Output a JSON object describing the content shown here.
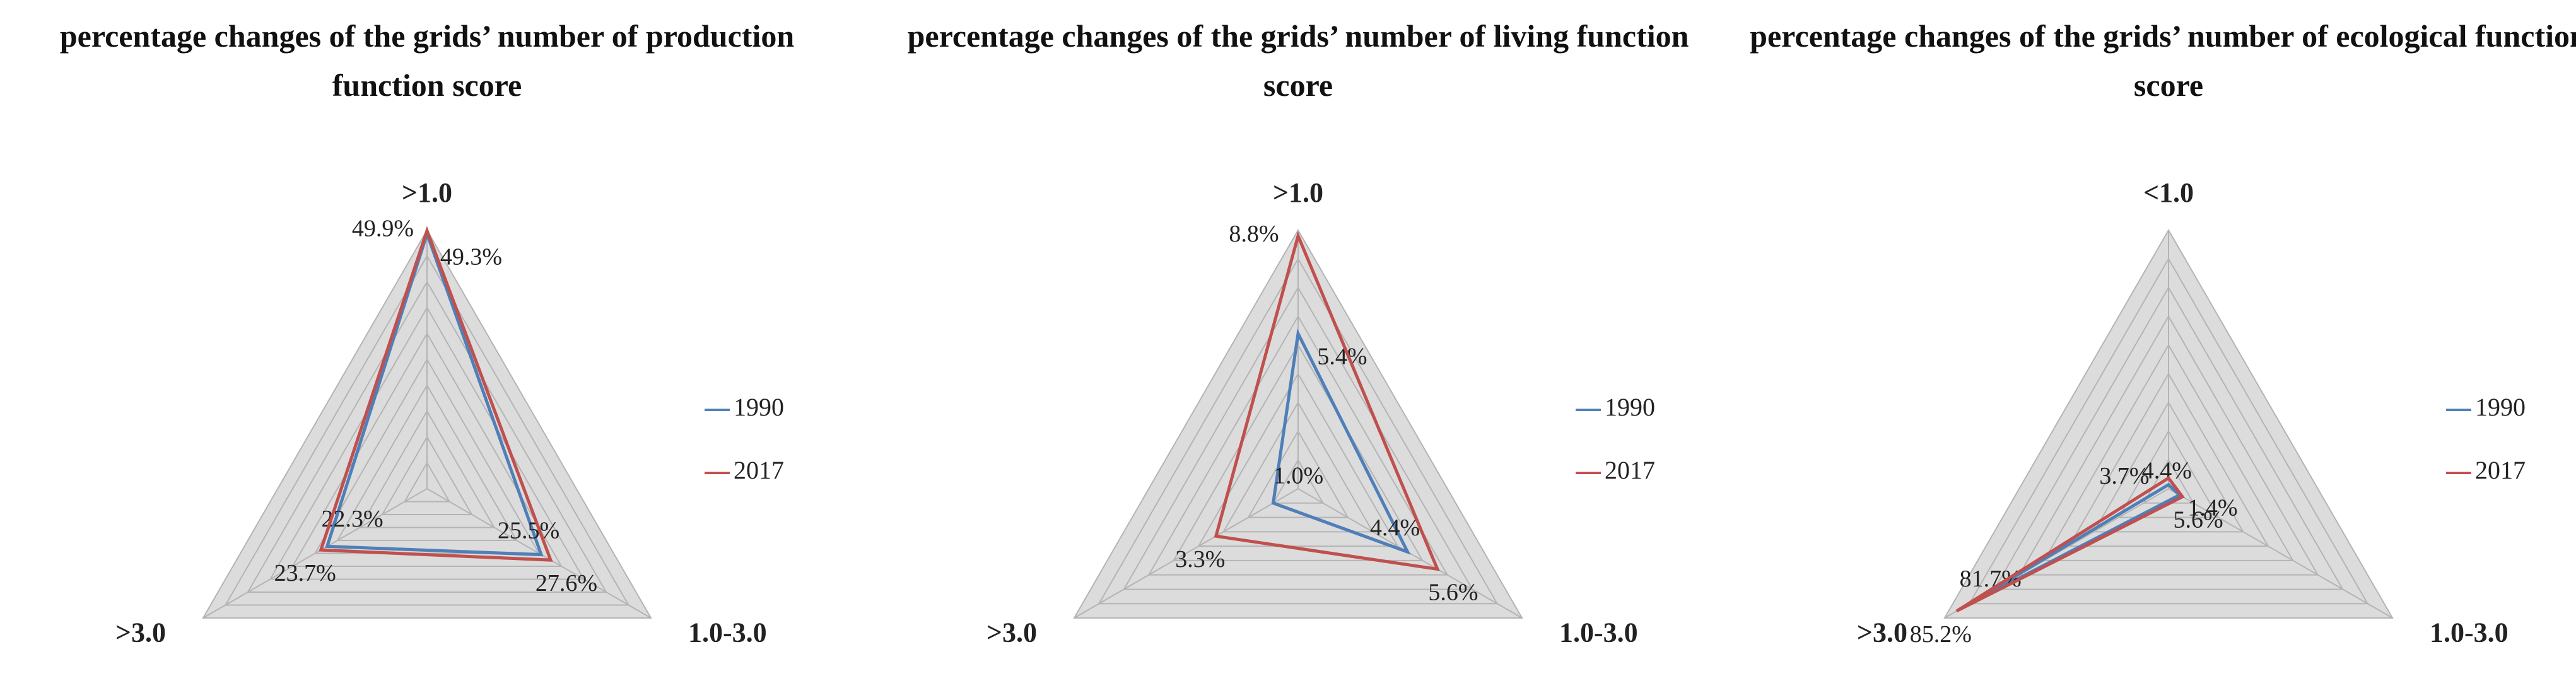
{
  "chart_data": [
    {
      "type": "radar",
      "title": "percentage changes of the grids’ number of production function score",
      "axes": [
        ">1.0",
        "1.0-3.0",
        ">3.0"
      ],
      "rlim": [
        0,
        50
      ],
      "rticks": [
        5,
        10,
        15,
        20,
        25,
        30,
        35,
        40,
        45,
        50
      ],
      "legend": "right",
      "series": [
        {
          "name": "1990",
          "color": "#4f7fb8",
          "values": [
            49.3,
            25.5,
            22.3
          ],
          "value_labels": [
            "49.3%",
            "25.5%",
            "22.3%"
          ]
        },
        {
          "name": "2017",
          "color": "#c0504d",
          "values": [
            49.9,
            27.6,
            23.7
          ],
          "value_labels": [
            "49.9%",
            "27.6%",
            "23.7%"
          ]
        }
      ]
    },
    {
      "type": "radar",
      "title": "percentage changes of the grids’ number of living function score",
      "axes": [
        ">1.0",
        "1.0-3.0",
        ">3.0"
      ],
      "rlim": [
        0,
        9
      ],
      "rticks": [
        1,
        2,
        3,
        4,
        5,
        6,
        7,
        8,
        9
      ],
      "legend": "right",
      "series": [
        {
          "name": "1990",
          "color": "#4f7fb8",
          "values": [
            5.4,
            4.4,
            1.0
          ],
          "value_labels": [
            "5.4%",
            "4.4%",
            "1.0%"
          ]
        },
        {
          "name": "2017",
          "color": "#c0504d",
          "values": [
            8.8,
            5.6,
            3.3
          ],
          "value_labels": [
            "8.8%",
            "5.6%",
            "3.3%"
          ]
        }
      ]
    },
    {
      "type": "radar",
      "title": "percentage changes of the grids’ number of ecological function score",
      "axes": [
        "<1.0",
        "1.0-3.0",
        ">3.0"
      ],
      "rlim": [
        0,
        90
      ],
      "rticks": [
        10,
        20,
        30,
        40,
        50,
        60,
        70,
        80,
        90
      ],
      "legend": "right",
      "series": [
        {
          "name": "1990",
          "color": "#4f7fb8",
          "values": [
            1.4,
            4.4,
            81.7
          ],
          "value_labels": [
            "1.4%",
            "4.4%",
            "81.7%"
          ]
        },
        {
          "name": "2017",
          "color": "#c0504d",
          "values": [
            3.7,
            5.6,
            85.2
          ],
          "value_labels": [
            "3.7%",
            "5.6%",
            "85.2%"
          ]
        }
      ]
    }
  ]
}
